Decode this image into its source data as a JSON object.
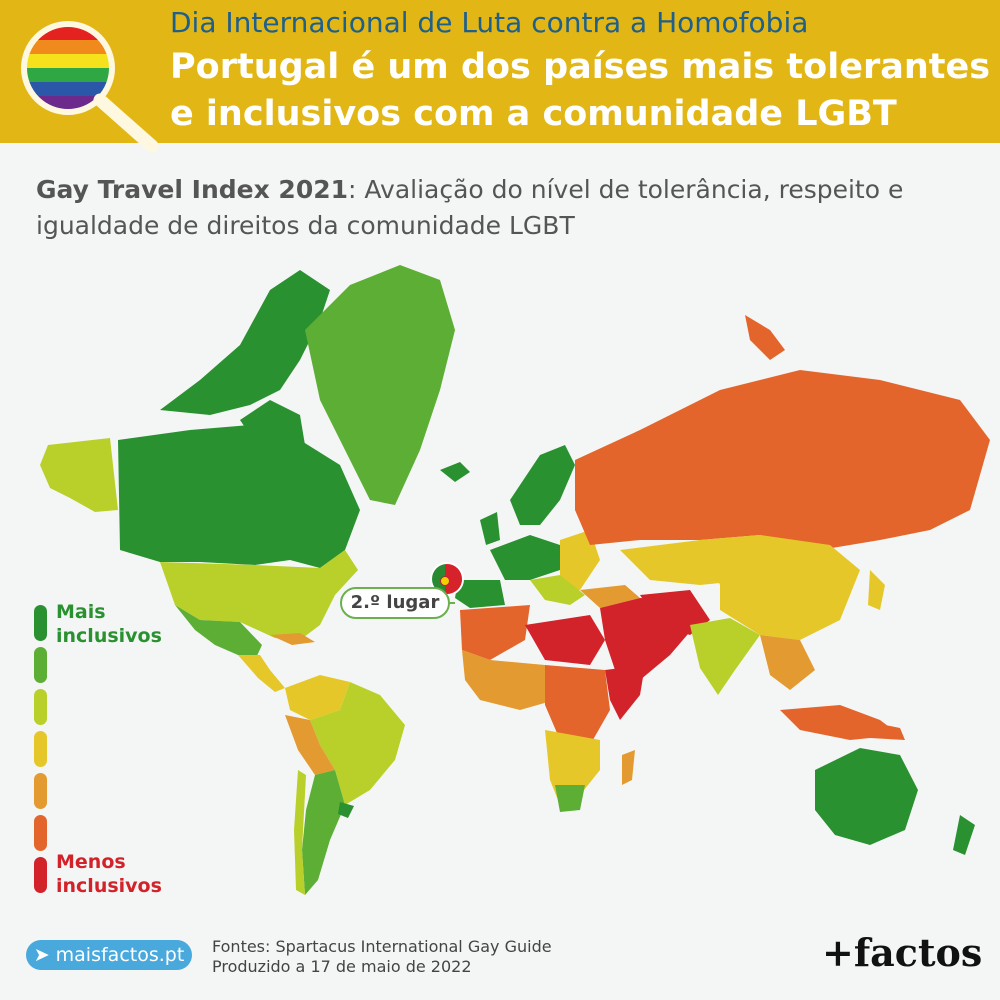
{
  "header": {
    "kicker": "Dia Internacional de Luta contra a Homofobia",
    "title_line1": "Portugal é um dos países mais tolerantes",
    "title_line2": "e inclusivos com a comunidade LGBT"
  },
  "subtitle": {
    "bold": "Gay Travel Index 2021",
    "text": ": Avaliação do nível de tolerância, respeito e igualdade de direitos da comunidade LGBT"
  },
  "legend": {
    "top_label_line1": "Mais",
    "top_label_line2": "inclusivos",
    "bottom_label_line1": "Menos",
    "bottom_label_line2": "inclusivos",
    "scale_colors": [
      "#2a9131",
      "#5cae35",
      "#b9d02b",
      "#e6c72a",
      "#e39a30",
      "#e3652c",
      "#d2222a"
    ]
  },
  "callout": {
    "label": "2.º lugar",
    "country": "Portugal"
  },
  "footer": {
    "site": "maisfactos.pt",
    "sources_line1": "Fontes: Spartacus International Gay Guide",
    "sources_line2": "Produzido a 17 de maio de 2022",
    "brand": "+factos"
  },
  "colors": {
    "header_bg": "#e2b715",
    "kicker": "#1f5f8b",
    "most_inclusive": "#2a9131",
    "least_inclusive": "#d2222a"
  }
}
